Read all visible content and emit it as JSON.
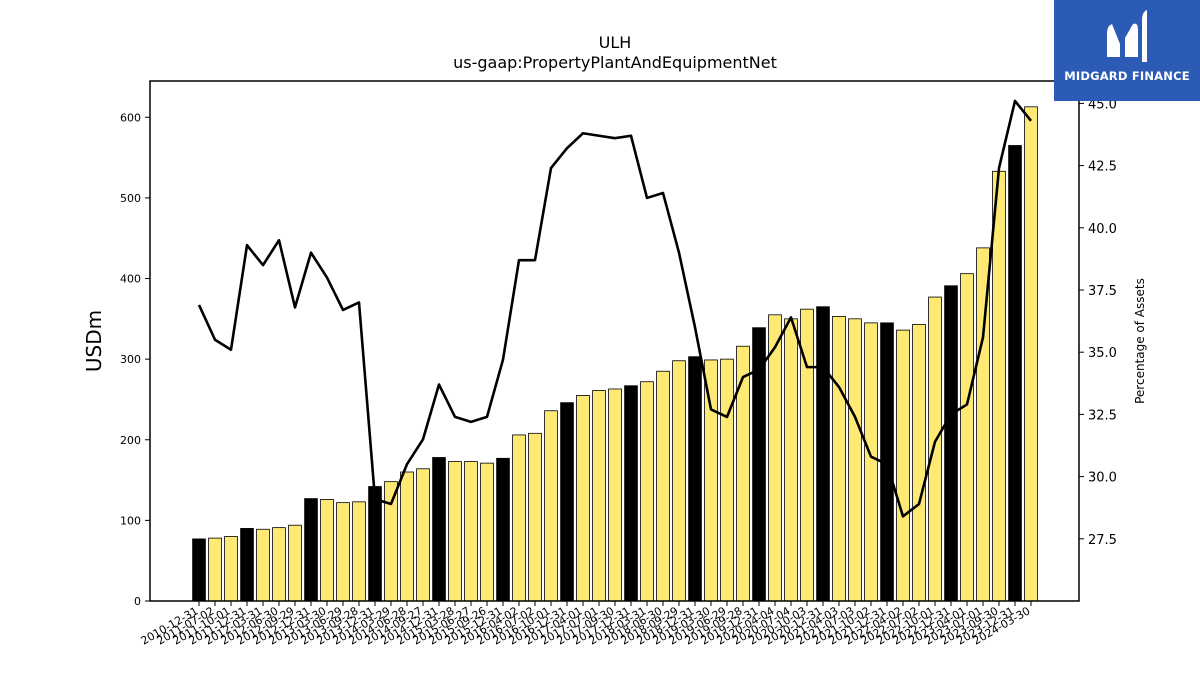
{
  "chart_data": {
    "type": "bar",
    "title": "ULH",
    "subtitle": "us-gaap:PropertyPlantAndEquipmentNet",
    "ylabel": "USDm",
    "y2label": "Percentage of Assets",
    "ylim": [
      0,
      645
    ],
    "y2lim": [
      25.0,
      45.9
    ],
    "yticks": [
      0,
      100,
      200,
      300,
      400,
      500,
      600
    ],
    "y2ticks": [
      "27.5",
      "30.0",
      "32.5",
      "35.0",
      "37.5",
      "40.0",
      "42.5",
      "45.0"
    ],
    "categories": [
      "2010-12-31",
      "2011-07-02",
      "2011-10-01",
      "2011-12-31",
      "2012-03-31",
      "2012-06-30",
      "2012-09-29",
      "2012-12-31",
      "2013-03-30",
      "2013-06-29",
      "2013-09-28",
      "2013-12-31",
      "2014-03-29",
      "2014-06-28",
      "2014-09-27",
      "2014-12-31",
      "2015-03-28",
      "2015-06-27",
      "2015-09-26",
      "2015-12-31",
      "2016-04-02",
      "2016-07-02",
      "2016-10-01",
      "2016-12-31",
      "2017-04-01",
      "2017-07-01",
      "2017-09-30",
      "2017-12-31",
      "2018-03-31",
      "2018-06-30",
      "2018-09-29",
      "2018-12-31",
      "2019-03-30",
      "2019-06-29",
      "2019-09-28",
      "2019-12-31",
      "2020-04-04",
      "2020-07-04",
      "2020-10-03",
      "2020-12-31",
      "2021-04-03",
      "2021-07-03",
      "2021-10-02",
      "2021-12-31",
      "2022-04-02",
      "2022-07-02",
      "2022-10-01",
      "2022-12-31",
      "2023-04-01",
      "2023-07-01",
      "2023-09-30",
      "2023-12-31",
      "2024-03-30"
    ],
    "values": [
      77,
      78,
      80,
      90,
      89,
      91,
      94,
      127,
      126,
      122,
      123,
      142,
      148,
      160,
      164,
      178,
      173,
      173,
      171,
      177,
      206,
      208,
      236,
      246,
      255,
      261,
      263,
      267,
      272,
      285,
      298,
      303,
      299,
      300,
      316,
      339,
      355,
      350,
      362,
      365,
      353,
      350,
      345,
      345,
      336,
      343,
      377,
      391,
      406,
      438,
      533,
      565,
      613
    ],
    "year_end": [
      true,
      false,
      false,
      true,
      false,
      false,
      false,
      true,
      false,
      false,
      false,
      true,
      false,
      false,
      false,
      true,
      false,
      false,
      false,
      true,
      false,
      false,
      false,
      true,
      false,
      false,
      false,
      true,
      false,
      false,
      false,
      true,
      false,
      false,
      false,
      true,
      false,
      false,
      false,
      true,
      false,
      false,
      false,
      true,
      false,
      false,
      false,
      true,
      false,
      false,
      false,
      true,
      false
    ],
    "pct_series": [
      36.9,
      35.5,
      35.1,
      39.3,
      38.5,
      39.5,
      36.8,
      39.0,
      38.0,
      36.7,
      37.0,
      29.1,
      28.9,
      30.5,
      31.5,
      33.7,
      32.4,
      32.2,
      32.4,
      34.7,
      38.7,
      38.7,
      42.4,
      43.2,
      43.8,
      43.7,
      43.6,
      43.7,
      41.2,
      41.4,
      39.0,
      36.0,
      32.7,
      32.4,
      34.0,
      34.3,
      35.2,
      36.4,
      34.4,
      34.4,
      33.6,
      32.4,
      30.8,
      30.5,
      28.4,
      28.9,
      31.4,
      32.5,
      32.9,
      35.6,
      42.4,
      45.1,
      44.3
    ],
    "colors": {
      "bar": "#fde974",
      "bar_year_end": "#000000",
      "line": "#000000"
    }
  },
  "logo": {
    "text": "MIDGARD FINANCE",
    "bg": "#2b5bb5"
  }
}
